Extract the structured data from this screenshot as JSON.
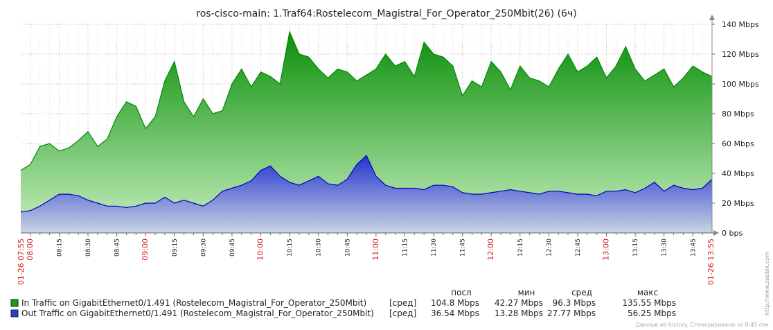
{
  "chart_data": {
    "type": "area",
    "title": "ros-cisco-main: 1.Traf64:Rostelecom_Magistral_For_Operator_250Mbit(26) (6ч)",
    "y_ticks": [
      "0 bps",
      "20 Mbps",
      "40 Mbps",
      "60 Mbps",
      "80 Mbps",
      "100 Mbps",
      "120 Mbps",
      "140 Mbps"
    ],
    "ylim": [
      0,
      140
    ],
    "yunit": "Mbps",
    "grid": true,
    "x_start_label": "01-26 07:55",
    "x_end_label": "01-26 13:55",
    "x_tick_labels": [
      "08:00",
      "08:15",
      "08:30",
      "08:45",
      "09:00",
      "09:15",
      "09:30",
      "09:45",
      "10:00",
      "10:15",
      "10:30",
      "10:45",
      "11:00",
      "11:15",
      "11:30",
      "11:45",
      "12:00",
      "12:15",
      "12:30",
      "12:45",
      "13:00",
      "13:15",
      "13:30",
      "13:45"
    ],
    "x_hour_labels": [
      "08:00",
      "09:00",
      "10:00",
      "11:00",
      "12:00",
      "13:00"
    ],
    "series": [
      {
        "name": "In Traffic on GigabitEthernet0/1.491 (Rostelecom_Magistral_For_Operator_250Mbit)",
        "color": "#1a9a1a",
        "line_color": "#008800",
        "stat_label": "[сред]",
        "last": "104.8 Mbps",
        "min": "42.27 Mbps",
        "avg": "96.3 Mbps",
        "max": "135.55 Mbps",
        "x_minutes": [
          0,
          5,
          10,
          15,
          20,
          25,
          30,
          35,
          40,
          45,
          50,
          55,
          60,
          65,
          70,
          75,
          80,
          85,
          90,
          95,
          100,
          105,
          110,
          115,
          120,
          125,
          130,
          135,
          140,
          145,
          150,
          155,
          160,
          165,
          170,
          175,
          180,
          185,
          190,
          195,
          200,
          205,
          210,
          215,
          220,
          225,
          230,
          235,
          240,
          245,
          250,
          255,
          260,
          265,
          270,
          275,
          280,
          285,
          290,
          295,
          300,
          305,
          310,
          315,
          320,
          325,
          330,
          335,
          340,
          345,
          350,
          355,
          360
        ],
        "values": [
          42,
          46,
          58,
          60,
          55,
          57,
          62,
          68,
          58,
          63,
          78,
          88,
          85,
          70,
          78,
          102,
          115,
          88,
          78,
          90,
          80,
          82,
          100,
          110,
          98,
          108,
          105,
          100,
          135,
          120,
          118,
          110,
          104,
          110,
          108,
          102,
          106,
          110,
          120,
          112,
          115,
          105,
          128,
          120,
          118,
          112,
          92,
          102,
          98,
          115,
          108,
          96,
          112,
          104,
          102,
          98,
          110,
          120,
          108,
          112,
          118,
          104,
          112,
          125,
          110,
          102,
          106,
          110,
          98,
          104,
          112,
          108,
          105
        ]
      },
      {
        "name": "Out Traffic on GigabitEthernet0/1.491 (Rostelecom_Magistral_For_Operator_250Mbit)",
        "color": "#2a3fd0",
        "line_color": "#0000bb",
        "stat_label": "[сред]",
        "last": "36.54 Mbps",
        "min": "13.28 Mbps",
        "avg": "27.77 Mbps",
        "max": "56.25 Mbps",
        "x_minutes": [
          0,
          5,
          10,
          15,
          20,
          25,
          30,
          35,
          40,
          45,
          50,
          55,
          60,
          65,
          70,
          75,
          80,
          85,
          90,
          95,
          100,
          105,
          110,
          115,
          120,
          125,
          130,
          135,
          140,
          145,
          150,
          155,
          160,
          165,
          170,
          175,
          180,
          185,
          190,
          195,
          200,
          205,
          210,
          215,
          220,
          225,
          230,
          235,
          240,
          245,
          250,
          255,
          260,
          265,
          270,
          275,
          280,
          285,
          290,
          295,
          300,
          305,
          310,
          315,
          320,
          325,
          330,
          335,
          340,
          345,
          350,
          355,
          360
        ],
        "values": [
          14,
          15,
          18,
          22,
          26,
          26,
          25,
          22,
          20,
          18,
          18,
          17,
          18,
          20,
          20,
          24,
          20,
          22,
          20,
          18,
          22,
          28,
          30,
          32,
          35,
          42,
          45,
          38,
          34,
          32,
          35,
          38,
          33,
          32,
          36,
          46,
          52,
          38,
          32,
          30,
          30,
          30,
          29,
          32,
          32,
          31,
          27,
          26,
          26,
          27,
          28,
          29,
          28,
          27,
          26,
          28,
          28,
          27,
          26,
          26,
          25,
          28,
          28,
          29,
          27,
          30,
          34,
          28,
          32,
          30,
          29,
          30,
          36
        ]
      }
    ],
    "legend_headers": [
      "посл",
      "мин",
      "сред",
      "макс"
    ],
    "side_note": "http://www.zabbix.com",
    "footer": "Данные из history. Сгенерировано за 0.45 сек"
  }
}
